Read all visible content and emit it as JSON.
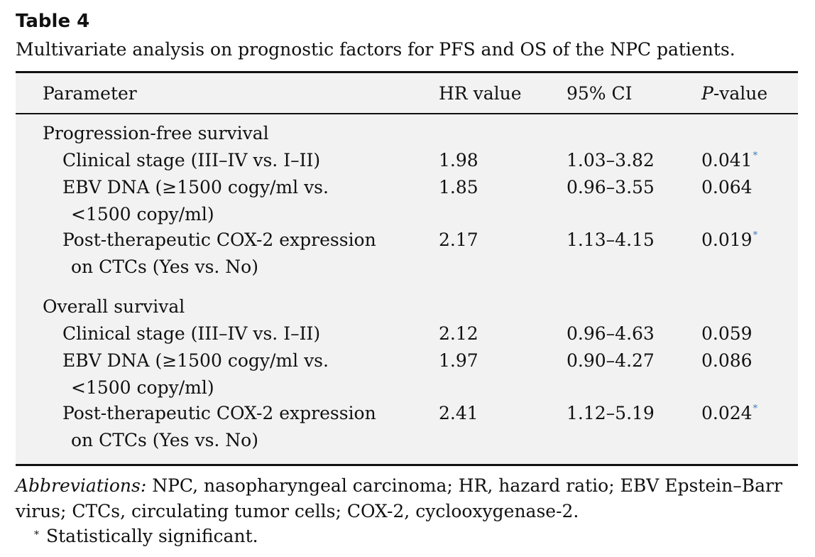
{
  "caption": {
    "label": "Table 4",
    "text": "Multivariate analysis on prognostic factors for PFS and OS of the NPC patients."
  },
  "table": {
    "headers": {
      "parameter": "Parameter",
      "hr": "HR value",
      "ci": "95% CI",
      "p_italic": "P",
      "p_rest": "-value"
    },
    "sections": [
      {
        "title": "Progression-free survival",
        "rows": [
          {
            "line1": "Clinical stage (III–IV vs. I–II)",
            "line2": "",
            "hr": "1.98",
            "ci": "1.03–3.82",
            "p": "0.041",
            "sig": "*"
          },
          {
            "line1": "EBV DNA (≥1500 cogy/ml vs.",
            "line2": "<1500 copy/ml)",
            "hr": "1.85",
            "ci": "0.96–3.55",
            "p": "0.064",
            "sig": ""
          },
          {
            "line1": "Post-therapeutic COX-2 expression",
            "line2": "on CTCs (Yes vs. No)",
            "hr": "2.17",
            "ci": "1.13–4.15",
            "p": "0.019",
            "sig": "*"
          }
        ]
      },
      {
        "title": "Overall survival",
        "rows": [
          {
            "line1": "Clinical stage (III–IV vs. I–II)",
            "line2": "",
            "hr": "2.12",
            "ci": "0.96–4.63",
            "p": "0.059",
            "sig": ""
          },
          {
            "line1": "EBV DNA (≥1500 cogy/ml vs.",
            "line2": "<1500 copy/ml)",
            "hr": "1.97",
            "ci": "0.90–4.27",
            "p": "0.086",
            "sig": ""
          },
          {
            "line1": "Post-therapeutic COX-2 expression",
            "line2": "on CTCs (Yes vs. No)",
            "hr": "2.41",
            "ci": "1.12–5.19",
            "p": "0.024",
            "sig": "*"
          }
        ]
      }
    ]
  },
  "footer": {
    "abbrev_label": "Abbreviations:",
    "abbrev_text": " NPC, nasopharyngeal carcinoma; HR, hazard ratio; EBV Epstein–Barr virus; CTCs, circulating tumor cells; COX-2, cyclooxygenase-2.",
    "footnote_mark": "*",
    "footnote_text": "Statistically significant."
  }
}
